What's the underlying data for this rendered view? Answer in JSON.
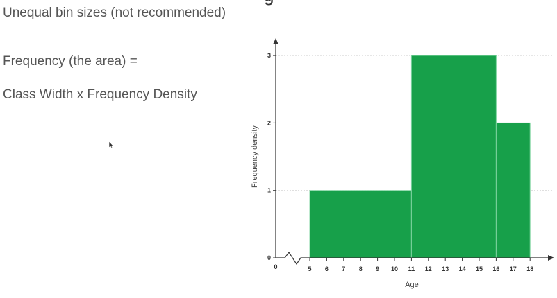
{
  "slide": {
    "title_fragment": "g",
    "subtitle": "Unequal bin sizes (not recommended)",
    "formula_line1": "Frequency (the area) =",
    "formula_line2": "Class Width x Frequency Density"
  },
  "chart_data": {
    "type": "bar",
    "title": "",
    "xlabel": "Age",
    "ylabel": "Frequency density",
    "xlim": [
      4,
      18
    ],
    "ylim": [
      0,
      3
    ],
    "x_break_origin": 0,
    "x_ticks": [
      5,
      6,
      7,
      8,
      9,
      10,
      11,
      12,
      13,
      14,
      15,
      16,
      17,
      18
    ],
    "y_ticks": [
      0,
      1,
      2,
      3
    ],
    "grid": true,
    "bins": [
      {
        "start": 5,
        "end": 11,
        "value": 1
      },
      {
        "start": 11,
        "end": 16,
        "value": 3
      },
      {
        "start": 16,
        "end": 18,
        "value": 2
      }
    ],
    "colors": {
      "bar": "#17a04a",
      "bar_edge": "#7fd4a0",
      "axis": "#333333",
      "grid": "#cccccc"
    }
  },
  "icons": {
    "cursor": "mouse-pointer-icon"
  }
}
